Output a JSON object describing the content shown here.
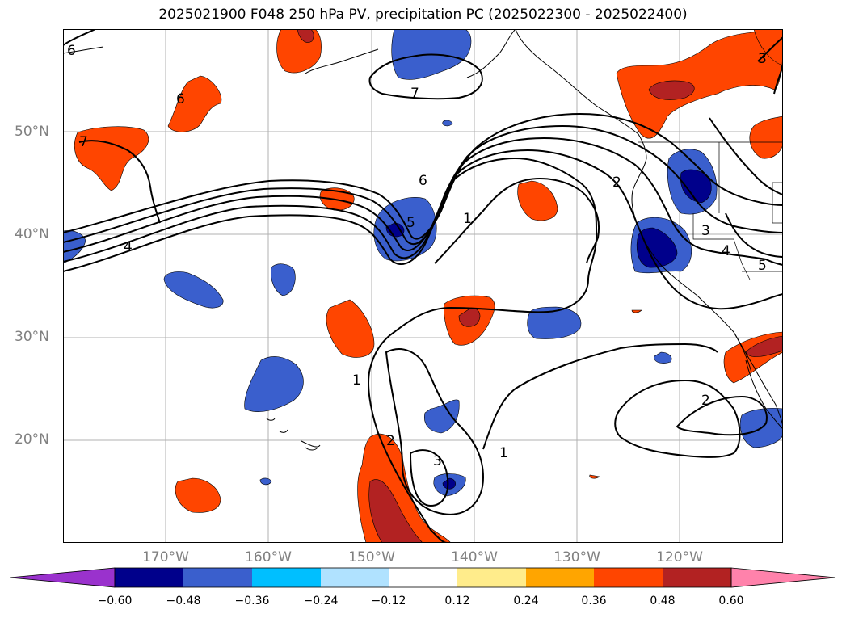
{
  "title": "2025021900 F048 250 hPa PV, precipitation PC (2025022300 - 2025022400)",
  "lat_labels": [
    "50°N",
    "40°N",
    "30°N",
    "20°N"
  ],
  "lon_labels": [
    "170°W",
    "160°W",
    "150°W",
    "140°W",
    "130°W",
    "120°W"
  ],
  "contour_labels": [
    "1",
    "1",
    "1",
    "2",
    "2",
    "2",
    "3",
    "3",
    "3",
    "4",
    "4",
    "5",
    "5",
    "6",
    "6",
    "7",
    "7",
    "6"
  ],
  "colorbar": {
    "ticks": [
      "−0.60",
      "−0.48",
      "−0.36",
      "−0.24",
      "−0.12",
      "0.12",
      "0.24",
      "0.36",
      "0.48",
      "0.60"
    ],
    "colors": {
      "under": "#9a32cd",
      "c1": "#00008b",
      "c2": "#3a5fcd",
      "c3": "#00bfff",
      "c4": "#b0e2ff",
      "c5": "#ffffff",
      "c6": "#ffec8b",
      "c7": "#ffa500",
      "c8": "#ff4500",
      "c9": "#b22222",
      "over": "#ff82ab"
    }
  }
}
